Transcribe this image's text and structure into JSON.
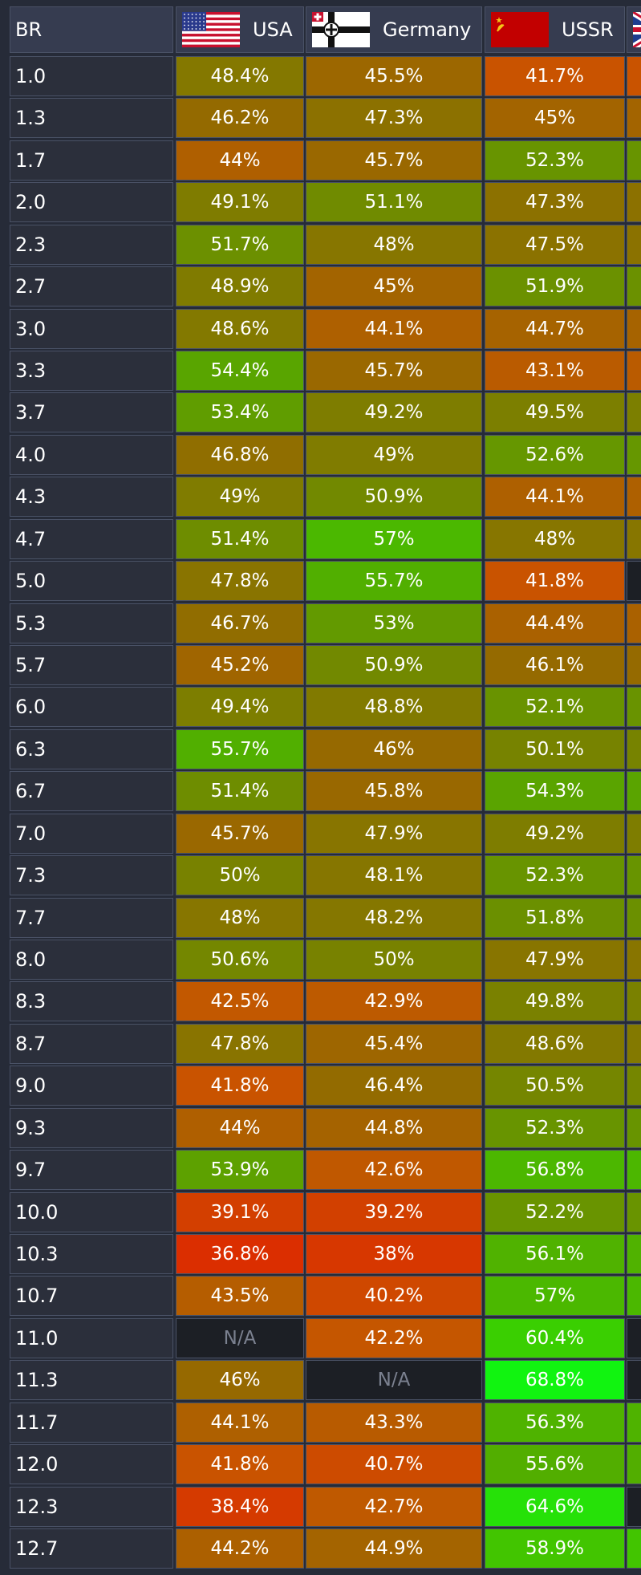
{
  "columns": [
    {
      "label": "BR"
    },
    {
      "label": "USA",
      "flag_icon": "usa-flag-icon"
    },
    {
      "label": "Germany",
      "flag_icon": "germany-flag-icon"
    },
    {
      "label": "USSR",
      "flag_icon": "ussr-flag-icon"
    },
    {
      "label": "",
      "flag_icon": "uk-flag-icon"
    }
  ],
  "colors": {
    "header_bg": "#363c50",
    "br_bg": "#2b2f3b",
    "na_bg": "#1c1f25",
    "low_win_rate": "#e02a00",
    "high_win_rate": "#10f010"
  },
  "rows": [
    {
      "br": "1.0",
      "values": [
        "48.4%",
        "45.5%",
        "41.7%"
      ],
      "partial": ""
    },
    {
      "br": "1.3",
      "values": [
        "46.2%",
        "47.3%",
        "45%"
      ],
      "partial": ""
    },
    {
      "br": "1.7",
      "values": [
        "44%",
        "45.7%",
        "52.3%"
      ],
      "partial": ""
    },
    {
      "br": "2.0",
      "values": [
        "49.1%",
        "51.1%",
        "47.3%"
      ],
      "partial": ""
    },
    {
      "br": "2.3",
      "values": [
        "51.7%",
        "48%",
        "47.5%"
      ],
      "partial": ""
    },
    {
      "br": "2.7",
      "values": [
        "48.9%",
        "45%",
        "51.9%"
      ],
      "partial": ""
    },
    {
      "br": "3.0",
      "values": [
        "48.6%",
        "44.1%",
        "44.7%"
      ],
      "partial": ""
    },
    {
      "br": "3.3",
      "values": [
        "54.4%",
        "45.7%",
        "43.1%"
      ],
      "partial": ""
    },
    {
      "br": "3.7",
      "values": [
        "53.4%",
        "49.2%",
        "49.5%"
      ],
      "partial": ""
    },
    {
      "br": "4.0",
      "values": [
        "46.8%",
        "49%",
        "52.6%"
      ],
      "partial": ""
    },
    {
      "br": "4.3",
      "values": [
        "49%",
        "50.9%",
        "44.1%"
      ],
      "partial": ""
    },
    {
      "br": "4.7",
      "values": [
        "51.4%",
        "57%",
        "48%"
      ],
      "partial": ""
    },
    {
      "br": "5.0",
      "values": [
        "47.8%",
        "55.7%",
        "41.8%"
      ],
      "partial": "N/A"
    },
    {
      "br": "5.3",
      "values": [
        "46.7%",
        "53%",
        "44.4%"
      ],
      "partial": ""
    },
    {
      "br": "5.7",
      "values": [
        "45.2%",
        "50.9%",
        "46.1%"
      ],
      "partial": ""
    },
    {
      "br": "6.0",
      "values": [
        "49.4%",
        "48.8%",
        "52.1%"
      ],
      "partial": ""
    },
    {
      "br": "6.3",
      "values": [
        "55.7%",
        "46%",
        "50.1%"
      ],
      "partial": ""
    },
    {
      "br": "6.7",
      "values": [
        "51.4%",
        "45.8%",
        "54.3%"
      ],
      "partial": ""
    },
    {
      "br": "7.0",
      "values": [
        "45.7%",
        "47.9%",
        "49.2%"
      ],
      "partial": ""
    },
    {
      "br": "7.3",
      "values": [
        "50%",
        "48.1%",
        "52.3%"
      ],
      "partial": ""
    },
    {
      "br": "7.7",
      "values": [
        "48%",
        "48.2%",
        "51.8%"
      ],
      "partial": ""
    },
    {
      "br": "8.0",
      "values": [
        "50.6%",
        "50%",
        "47.9%"
      ],
      "partial": ""
    },
    {
      "br": "8.3",
      "values": [
        "42.5%",
        "42.9%",
        "49.8%"
      ],
      "partial": ""
    },
    {
      "br": "8.7",
      "values": [
        "47.8%",
        "45.4%",
        "48.6%"
      ],
      "partial": ""
    },
    {
      "br": "9.0",
      "values": [
        "41.8%",
        "46.4%",
        "50.5%"
      ],
      "partial": ""
    },
    {
      "br": "9.3",
      "values": [
        "44%",
        "44.8%",
        "52.3%"
      ],
      "partial": ""
    },
    {
      "br": "9.7",
      "values": [
        "53.9%",
        "42.6%",
        "56.8%"
      ],
      "partial": ""
    },
    {
      "br": "10.0",
      "values": [
        "39.1%",
        "39.2%",
        "52.2%"
      ],
      "partial": ""
    },
    {
      "br": "10.3",
      "values": [
        "36.8%",
        "38%",
        "56.1%"
      ],
      "partial": ""
    },
    {
      "br": "10.7",
      "values": [
        "43.5%",
        "40.2%",
        "57%"
      ],
      "partial": ""
    },
    {
      "br": "11.0",
      "values": [
        "N/A",
        "42.2%",
        "60.4%"
      ],
      "partial": "N/A"
    },
    {
      "br": "11.3",
      "values": [
        "46%",
        "N/A",
        "68.8%"
      ],
      "partial": "N/A"
    },
    {
      "br": "11.7",
      "values": [
        "44.1%",
        "43.3%",
        "56.3%"
      ],
      "partial": ""
    },
    {
      "br": "12.0",
      "values": [
        "41.8%",
        "40.7%",
        "55.6%"
      ],
      "partial": ""
    },
    {
      "br": "12.3",
      "values": [
        "38.4%",
        "42.7%",
        "64.6%"
      ],
      "partial": "N/A"
    },
    {
      "br": "12.7",
      "values": [
        "44.2%",
        "44.9%",
        "58.9%"
      ],
      "partial": ""
    }
  ]
}
